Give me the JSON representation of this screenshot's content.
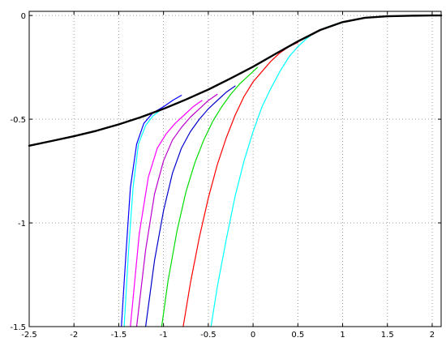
{
  "chart_data": {
    "type": "line",
    "title": "",
    "xlabel": "",
    "ylabel": "",
    "xlim": [
      -2.5,
      2.1
    ],
    "ylim": [
      -1.5,
      0.02
    ],
    "grid": true,
    "legend": "none",
    "x_ticks": [
      -2.5,
      -2,
      -1.5,
      -1,
      -0.5,
      0,
      0.5,
      1,
      1.5,
      2
    ],
    "x_tick_labels": [
      "-2.5",
      "-2",
      "-1.5",
      "-1",
      "-0.5",
      "0",
      "0.5",
      "1",
      "1.5",
      "2"
    ],
    "y_ticks": [
      0,
      -0.5,
      -1,
      -1.5
    ],
    "y_tick_labels": [
      "0",
      "-0.5",
      "-1",
      "-1.5"
    ],
    "series": [
      {
        "color": "#000000",
        "width": 2.4,
        "x": [
          -2.5,
          -2.25,
          -2.0,
          -1.75,
          -1.5,
          -1.25,
          -1.0,
          -0.75,
          -0.5,
          -0.25,
          0.0,
          0.25,
          0.5,
          0.75,
          1.0,
          1.25,
          1.5,
          1.75,
          2.0,
          2.1
        ],
        "y": [
          -0.628,
          -0.605,
          -0.582,
          -0.556,
          -0.525,
          -0.49,
          -0.45,
          -0.405,
          -0.357,
          -0.303,
          -0.247,
          -0.185,
          -0.125,
          -0.07,
          -0.032,
          -0.011,
          -0.004,
          -0.001,
          0.0,
          0.0
        ]
      },
      {
        "color": "#00ffff",
        "width": 1.2,
        "x": [
          -0.47,
          -0.4,
          -0.3,
          -0.2,
          -0.1,
          0.0,
          0.1,
          0.2,
          0.3,
          0.4,
          0.5,
          0.6,
          0.7,
          0.8,
          0.9,
          1.0
        ],
        "y": [
          -1.5,
          -1.31,
          -1.08,
          -0.87,
          -0.7,
          -0.56,
          -0.44,
          -0.35,
          -0.27,
          -0.2,
          -0.15,
          -0.11,
          -0.08,
          -0.06,
          -0.045,
          -0.035
        ]
      },
      {
        "color": "#ff0000",
        "width": 1.2,
        "x": [
          -0.78,
          -0.7,
          -0.6,
          -0.5,
          -0.4,
          -0.3,
          -0.2,
          -0.1,
          0.0,
          0.1,
          0.2,
          0.3,
          0.4,
          0.5
        ],
        "y": [
          -1.5,
          -1.29,
          -1.07,
          -0.88,
          -0.72,
          -0.59,
          -0.48,
          -0.39,
          -0.32,
          -0.27,
          -0.22,
          -0.18,
          -0.15,
          -0.13
        ]
      },
      {
        "color": "#00dd00",
        "width": 1.2,
        "x": [
          -1.02,
          -0.95,
          -0.85,
          -0.75,
          -0.65,
          -0.55,
          -0.45,
          -0.35,
          -0.25,
          -0.15,
          -0.05,
          0.05
        ],
        "y": [
          -1.5,
          -1.28,
          -1.04,
          -0.85,
          -0.71,
          -0.6,
          -0.51,
          -0.44,
          -0.38,
          -0.33,
          -0.29,
          -0.25
        ]
      },
      {
        "color": "#0000cc",
        "width": 1.2,
        "x": [
          -1.2,
          -1.1,
          -1.0,
          -0.9,
          -0.8,
          -0.7,
          -0.6,
          -0.5,
          -0.4,
          -0.3,
          -0.2
        ],
        "y": [
          -1.5,
          -1.18,
          -0.94,
          -0.76,
          -0.64,
          -0.56,
          -0.5,
          -0.45,
          -0.41,
          -0.37,
          -0.34
        ]
      },
      {
        "color": "#bb00cc",
        "width": 1.2,
        "x": [
          -1.3,
          -1.2,
          -1.1,
          -1.0,
          -0.9,
          -0.8,
          -0.7,
          -0.6,
          -0.5,
          -0.4
        ],
        "y": [
          -1.5,
          -1.13,
          -0.86,
          -0.7,
          -0.6,
          -0.54,
          -0.49,
          -0.45,
          -0.41,
          -0.38
        ]
      },
      {
        "color": "#ff00ff",
        "width": 1.2,
        "x": [
          -1.37,
          -1.27,
          -1.17,
          -1.07,
          -0.97,
          -0.87,
          -0.77,
          -0.67,
          -0.57
        ],
        "y": [
          -1.5,
          -1.05,
          -0.78,
          -0.64,
          -0.57,
          -0.52,
          -0.48,
          -0.44,
          -0.41
        ]
      },
      {
        "color": "#0000ff",
        "width": 1.2,
        "x": [
          -1.47,
          -1.42,
          -1.37,
          -1.3,
          -1.22,
          -1.12,
          -1.0,
          -0.9,
          -0.8
        ],
        "y": [
          -1.5,
          -1.15,
          -0.83,
          -0.62,
          -0.52,
          -0.47,
          -0.44,
          -0.41,
          -0.385
        ]
      },
      {
        "color": "#00ffff",
        "width": 1.2,
        "x": [
          -1.44,
          -1.39,
          -1.34,
          -1.28,
          -1.2,
          -1.12,
          -1.03
        ],
        "y": [
          -1.5,
          -1.13,
          -0.83,
          -0.62,
          -0.53,
          -0.485,
          -0.455
        ]
      }
    ]
  }
}
